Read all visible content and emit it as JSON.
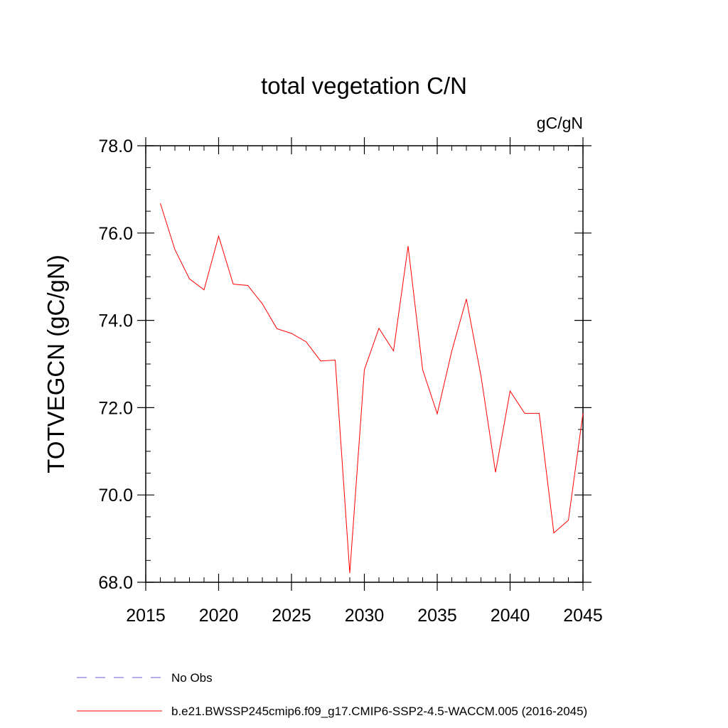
{
  "chart_data": {
    "type": "line",
    "title": "total vegetation C/N",
    "units": "gC/gN",
    "xlabel": "",
    "ylabel": "TOTVEGCN  (gC/gN)",
    "xlim": [
      2015,
      2045
    ],
    "ylim": [
      68.0,
      78.0
    ],
    "xticks": [
      2015,
      2020,
      2025,
      2030,
      2035,
      2040,
      2045
    ],
    "xtick_labels": [
      "2015",
      "2020",
      "2025",
      "2030",
      "2035",
      "2040",
      "2045"
    ],
    "yticks": [
      68.0,
      70.0,
      72.0,
      74.0,
      76.0,
      78.0
    ],
    "ytick_labels": [
      "68.0",
      "70.0",
      "72.0",
      "74.0",
      "76.0",
      "78.0"
    ],
    "grid": false,
    "legend_position": "bottom",
    "series": [
      {
        "name": "b.e21.BWSSP245cmip6.f09_g17.CMIP6-SSP2-4.5-WACCM.005 (2016-2045)",
        "color": "#ff0000",
        "x": [
          2016,
          2017,
          2018,
          2019,
          2020,
          2021,
          2022,
          2023,
          2024,
          2025,
          2026,
          2027,
          2028,
          2029,
          2030,
          2031,
          2032,
          2033,
          2034,
          2035,
          2036,
          2037,
          2038,
          2039,
          2040,
          2041,
          2042,
          2043,
          2044,
          2045
        ],
        "y": [
          76.68,
          75.62,
          74.95,
          74.7,
          75.93,
          74.83,
          74.8,
          74.38,
          73.81,
          73.7,
          73.51,
          73.07,
          73.09,
          68.21,
          72.87,
          73.82,
          73.3,
          75.7,
          72.87,
          71.86,
          73.3,
          74.49,
          72.73,
          70.52,
          72.38,
          71.87,
          71.87,
          69.13,
          69.42,
          71.87
        ]
      }
    ],
    "legend": [
      {
        "label": "No Obs",
        "color": "#6a5acd",
        "style": "dashed"
      },
      {
        "label": "b.e21.BWSSP245cmip6.f09_g17.CMIP6-SSP2-4.5-WACCM.005 (2016-2045)",
        "color": "#ff0000",
        "style": "solid"
      }
    ]
  }
}
